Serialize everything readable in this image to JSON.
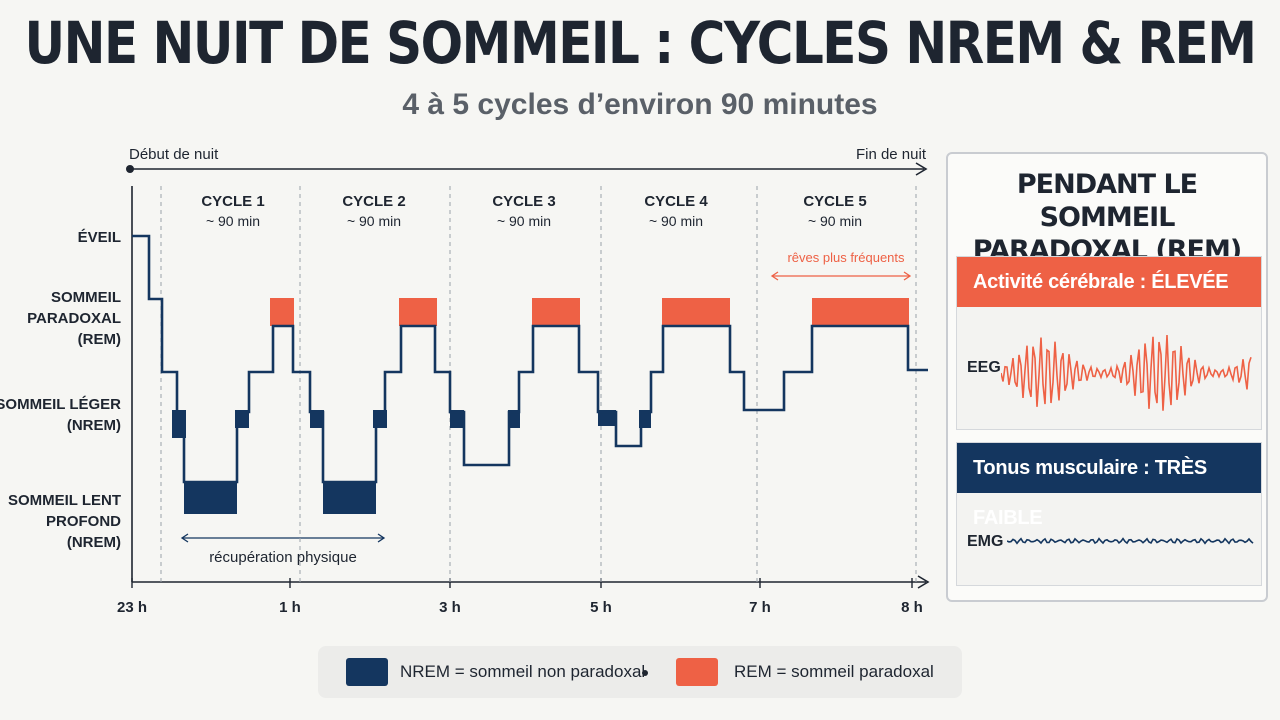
{
  "title": "UNE NUIT DE SOMMEIL : CYCLES NREM & REM",
  "subtitle": "4 à 5 cycles d’environ 90 minutes",
  "chart_data": {
    "type": "line",
    "subtype": "hypnogram",
    "timeline": {
      "start_label": "Début de nuit",
      "end_label": "Fin de nuit"
    },
    "stages": [
      {
        "key": "wake",
        "label": [
          "ÉVEIL"
        ]
      },
      {
        "key": "rem",
        "label": [
          "SOMMEIL",
          "PARADOXAL",
          "(REM)"
        ]
      },
      {
        "key": "light",
        "label": [
          "SOMMEIL LÉGER",
          "(NREM)"
        ]
      },
      {
        "key": "deep",
        "label": [
          "SOMMEIL LENT",
          "PROFOND",
          "(NREM)"
        ]
      }
    ],
    "x_ticks": [
      "23 h",
      "1 h",
      "3 h",
      "5 h",
      "7 h",
      "8 h"
    ],
    "cycles": [
      {
        "name": "CYCLE 1",
        "duration": "~ 90 min"
      },
      {
        "name": "CYCLE 2",
        "duration": "~ 90 min"
      },
      {
        "name": "CYCLE 3",
        "duration": "~ 90 min"
      },
      {
        "name": "CYCLE 4",
        "duration": "~ 90 min"
      },
      {
        "name": "CYCLE 5",
        "duration": "~ 90 min"
      }
    ],
    "annotations": {
      "rem_note": "rêves plus fréquents",
      "deep_note": "récupération physique"
    },
    "colors": {
      "nrem": "#14365f",
      "rem": "#ee6145",
      "axis": "#1e2530"
    }
  },
  "panel": {
    "title_line1": "PENDANT LE SOMMEIL",
    "title_line2": "PARADOXAL (REM)",
    "brain": {
      "label": "Activité cérébrale : ÉLEVÉE",
      "signal": "EEG"
    },
    "muscle": {
      "label": "Tonus musculaire : TRÈS FAIBLE",
      "signal": "EMG"
    }
  },
  "legend": {
    "nrem": "NREM = sommeil non paradoxal",
    "rem": "REM = sommeil paradoxal"
  }
}
